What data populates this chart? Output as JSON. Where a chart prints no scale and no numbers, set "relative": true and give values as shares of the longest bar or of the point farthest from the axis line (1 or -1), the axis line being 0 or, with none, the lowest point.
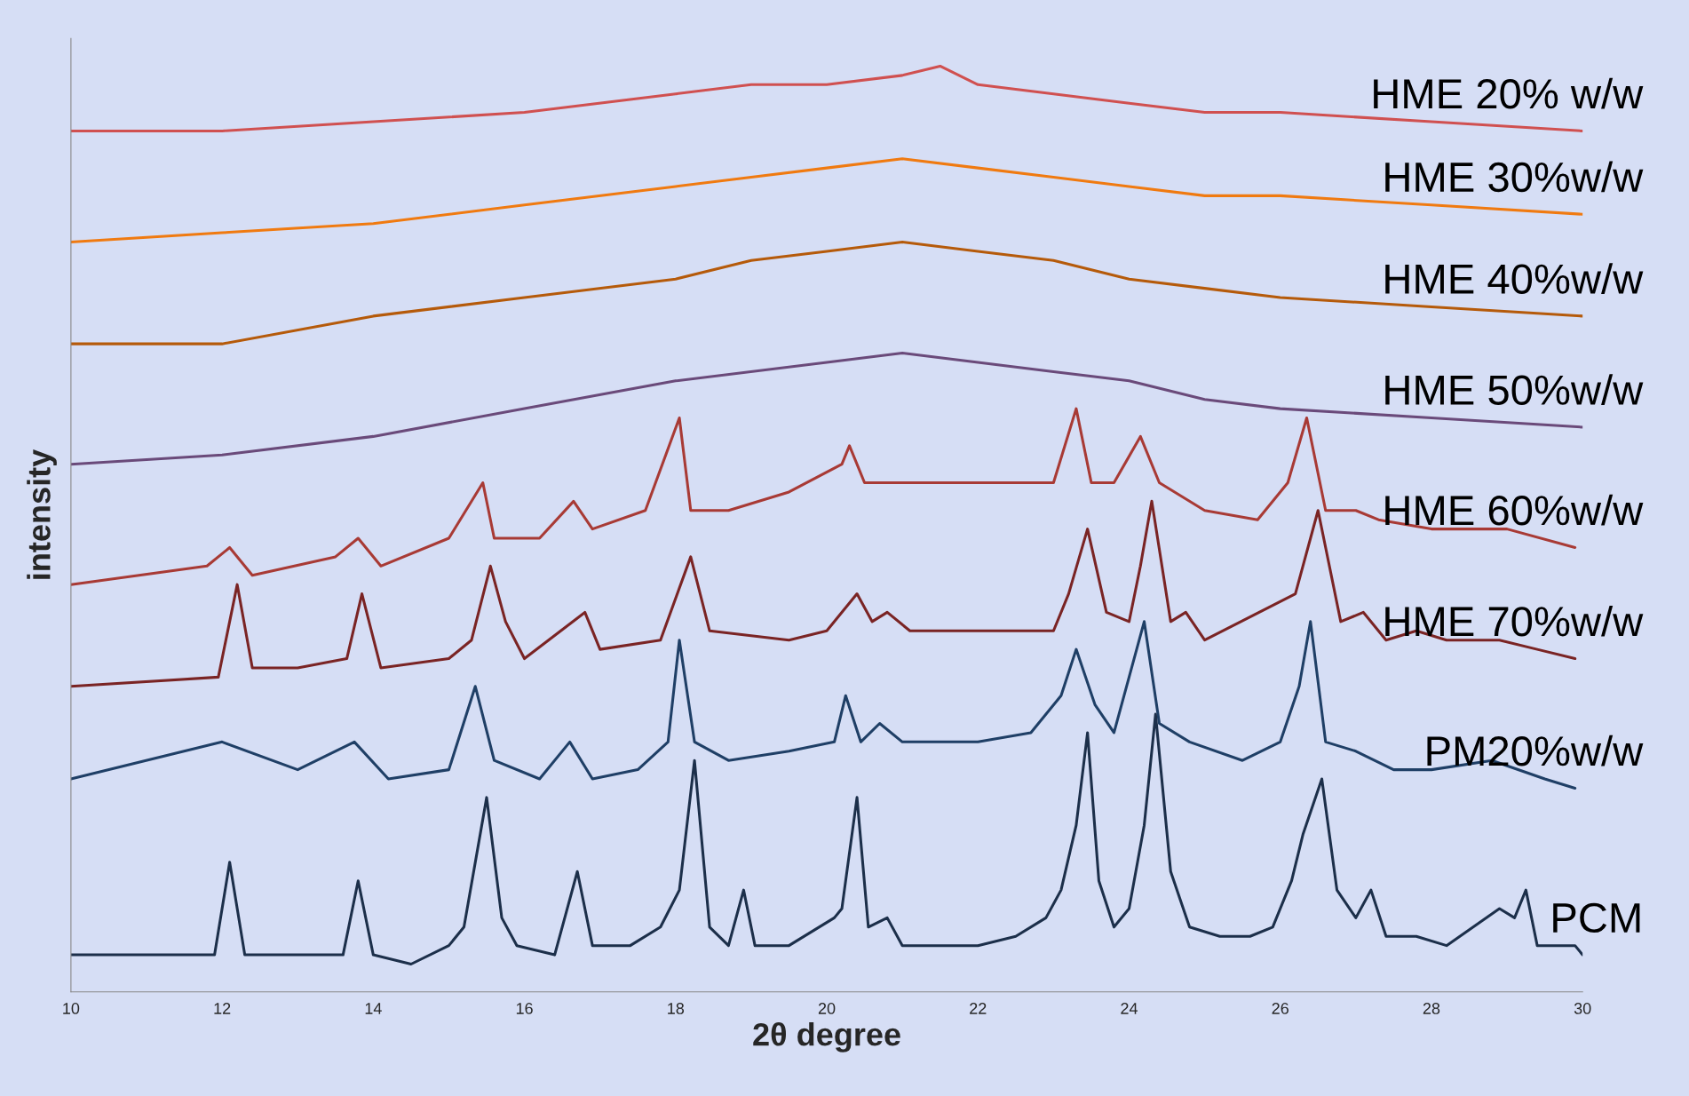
{
  "chart_data": {
    "type": "line",
    "xlabel": "2θ degree",
    "ylabel": "intensity",
    "relative": true,
    "xlim": [
      10,
      30
    ],
    "xticks": [
      10,
      12,
      14,
      16,
      18,
      20,
      22,
      24,
      26,
      28,
      30
    ],
    "grid": false,
    "legend": false,
    "line_style": "solid",
    "marker": "none",
    "series": [
      {
        "name": "HME 20% w/w",
        "color": "#d05050",
        "x": [
          10,
          12,
          14,
          16,
          18,
          19,
          20,
          21,
          21.5,
          22,
          23,
          24,
          25,
          26,
          28,
          30
        ],
        "values": [
          0.93,
          0.93,
          0.94,
          0.95,
          0.97,
          0.98,
          0.98,
          0.99,
          1.0,
          0.98,
          0.97,
          0.96,
          0.95,
          0.95,
          0.94,
          0.93
        ]
      },
      {
        "name": "HME 30%w/w",
        "color": "#f07a10",
        "x": [
          10,
          12,
          14,
          16,
          18,
          19,
          20,
          21,
          22,
          23,
          24,
          25,
          26,
          28,
          30
        ],
        "values": [
          0.81,
          0.82,
          0.83,
          0.85,
          0.87,
          0.88,
          0.89,
          0.9,
          0.89,
          0.88,
          0.87,
          0.86,
          0.86,
          0.85,
          0.84
        ]
      },
      {
        "name": "HME 40%w/w",
        "color": "#b55a0a",
        "x": [
          10,
          12,
          14,
          16,
          18,
          19,
          20,
          21,
          22,
          23,
          24,
          25,
          26,
          28,
          30
        ],
        "values": [
          0.7,
          0.7,
          0.73,
          0.75,
          0.77,
          0.79,
          0.8,
          0.81,
          0.8,
          0.79,
          0.77,
          0.76,
          0.75,
          0.74,
          0.73
        ]
      },
      {
        "name": "HME 50%w/w",
        "color": "#6a4a7a",
        "x": [
          10,
          12,
          14,
          16,
          18,
          20,
          21,
          22,
          23,
          24,
          25,
          26,
          28,
          30
        ],
        "values": [
          0.57,
          0.58,
          0.6,
          0.63,
          0.66,
          0.68,
          0.69,
          0.68,
          0.67,
          0.66,
          0.64,
          0.63,
          0.62,
          0.61
        ]
      },
      {
        "name": "HME 60%w/w",
        "color": "#a83a35",
        "x": [
          10,
          11.8,
          12.1,
          12.4,
          13.5,
          13.8,
          14.1,
          15.0,
          15.45,
          15.6,
          16.2,
          16.65,
          16.9,
          17.6,
          18.05,
          18.2,
          18.7,
          19.5,
          20.2,
          20.3,
          20.5,
          21.5,
          22.5,
          23.0,
          23.3,
          23.5,
          23.8,
          24.15,
          24.4,
          25.0,
          25.7,
          26.1,
          26.35,
          26.6,
          27.0,
          27.3,
          28.0,
          29.0,
          29.9
        ],
        "values": [
          0.44,
          0.46,
          0.48,
          0.45,
          0.47,
          0.49,
          0.46,
          0.49,
          0.55,
          0.49,
          0.49,
          0.53,
          0.5,
          0.52,
          0.62,
          0.52,
          0.52,
          0.54,
          0.57,
          0.59,
          0.55,
          0.55,
          0.55,
          0.55,
          0.63,
          0.55,
          0.55,
          0.6,
          0.55,
          0.52,
          0.51,
          0.55,
          0.62,
          0.52,
          0.52,
          0.51,
          0.5,
          0.5,
          0.48
        ]
      },
      {
        "name": "HME 70%w/w",
        "color": "#7a2424",
        "x": [
          10,
          11.95,
          12.2,
          12.4,
          13.0,
          13.65,
          13.85,
          14.1,
          15.0,
          15.3,
          15.55,
          15.75,
          16.0,
          16.8,
          17.0,
          17.8,
          18.2,
          18.45,
          19.5,
          20.0,
          20.4,
          20.6,
          20.8,
          21.1,
          23.0,
          23.2,
          23.45,
          23.7,
          24.0,
          24.15,
          24.3,
          24.55,
          24.75,
          25.0,
          26.2,
          26.5,
          26.8,
          27.1,
          27.4,
          27.8,
          28.2,
          28.9,
          29.4,
          29.9
        ],
        "values": [
          0.33,
          0.34,
          0.44,
          0.35,
          0.35,
          0.36,
          0.43,
          0.35,
          0.36,
          0.38,
          0.46,
          0.4,
          0.36,
          0.41,
          0.37,
          0.38,
          0.47,
          0.39,
          0.38,
          0.39,
          0.43,
          0.4,
          0.41,
          0.39,
          0.39,
          0.43,
          0.5,
          0.41,
          0.4,
          0.46,
          0.53,
          0.4,
          0.41,
          0.38,
          0.43,
          0.52,
          0.4,
          0.41,
          0.38,
          0.39,
          0.38,
          0.38,
          0.37,
          0.36
        ]
      },
      {
        "name": "PM20%w/w",
        "color": "#1f3f66",
        "x": [
          10,
          12.0,
          13.0,
          13.75,
          14.2,
          15.0,
          15.35,
          15.6,
          16.2,
          16.6,
          16.9,
          17.5,
          17.9,
          18.05,
          18.25,
          18.7,
          19.5,
          20.1,
          20.25,
          20.45,
          20.7,
          21.0,
          22.0,
          22.7,
          23.1,
          23.3,
          23.55,
          23.8,
          24.0,
          24.2,
          24.4,
          24.8,
          25.5,
          26.0,
          26.25,
          26.4,
          26.6,
          27.0,
          27.5,
          28.0,
          28.8,
          29.5,
          29.9
        ],
        "values": [
          0.23,
          0.27,
          0.24,
          0.27,
          0.23,
          0.24,
          0.33,
          0.25,
          0.23,
          0.27,
          0.23,
          0.24,
          0.27,
          0.38,
          0.27,
          0.25,
          0.26,
          0.27,
          0.32,
          0.27,
          0.29,
          0.27,
          0.27,
          0.28,
          0.32,
          0.37,
          0.31,
          0.28,
          0.34,
          0.4,
          0.29,
          0.27,
          0.25,
          0.27,
          0.33,
          0.4,
          0.27,
          0.26,
          0.24,
          0.24,
          0.25,
          0.23,
          0.22
        ]
      },
      {
        "name": "PCM",
        "color": "#1c2f4a",
        "x": [
          10,
          11.5,
          11.9,
          12.1,
          12.3,
          12.6,
          13.6,
          13.8,
          14.0,
          14.5,
          15.0,
          15.2,
          15.5,
          15.7,
          15.9,
          16.4,
          16.7,
          16.9,
          17.4,
          17.8,
          18.05,
          18.25,
          18.45,
          18.7,
          18.9,
          19.05,
          19.5,
          20.1,
          20.2,
          20.4,
          20.55,
          20.8,
          21.0,
          22.0,
          22.5,
          22.9,
          23.1,
          23.3,
          23.45,
          23.6,
          23.8,
          24.0,
          24.2,
          24.35,
          24.55,
          24.8,
          25.2,
          25.6,
          25.9,
          26.15,
          26.3,
          26.55,
          26.75,
          27.0,
          27.2,
          27.4,
          27.8,
          28.2,
          28.9,
          29.1,
          29.25,
          29.4,
          29.9,
          30.0
        ],
        "values": [
          0.04,
          0.04,
          0.04,
          0.14,
          0.04,
          0.04,
          0.04,
          0.12,
          0.04,
          0.03,
          0.05,
          0.07,
          0.21,
          0.08,
          0.05,
          0.04,
          0.13,
          0.05,
          0.05,
          0.07,
          0.11,
          0.25,
          0.07,
          0.05,
          0.11,
          0.05,
          0.05,
          0.08,
          0.09,
          0.21,
          0.07,
          0.08,
          0.05,
          0.05,
          0.06,
          0.08,
          0.11,
          0.18,
          0.28,
          0.12,
          0.07,
          0.09,
          0.18,
          0.3,
          0.13,
          0.07,
          0.06,
          0.06,
          0.07,
          0.12,
          0.17,
          0.23,
          0.11,
          0.08,
          0.11,
          0.06,
          0.06,
          0.05,
          0.09,
          0.08,
          0.11,
          0.05,
          0.05,
          0.04
        ]
      }
    ]
  }
}
